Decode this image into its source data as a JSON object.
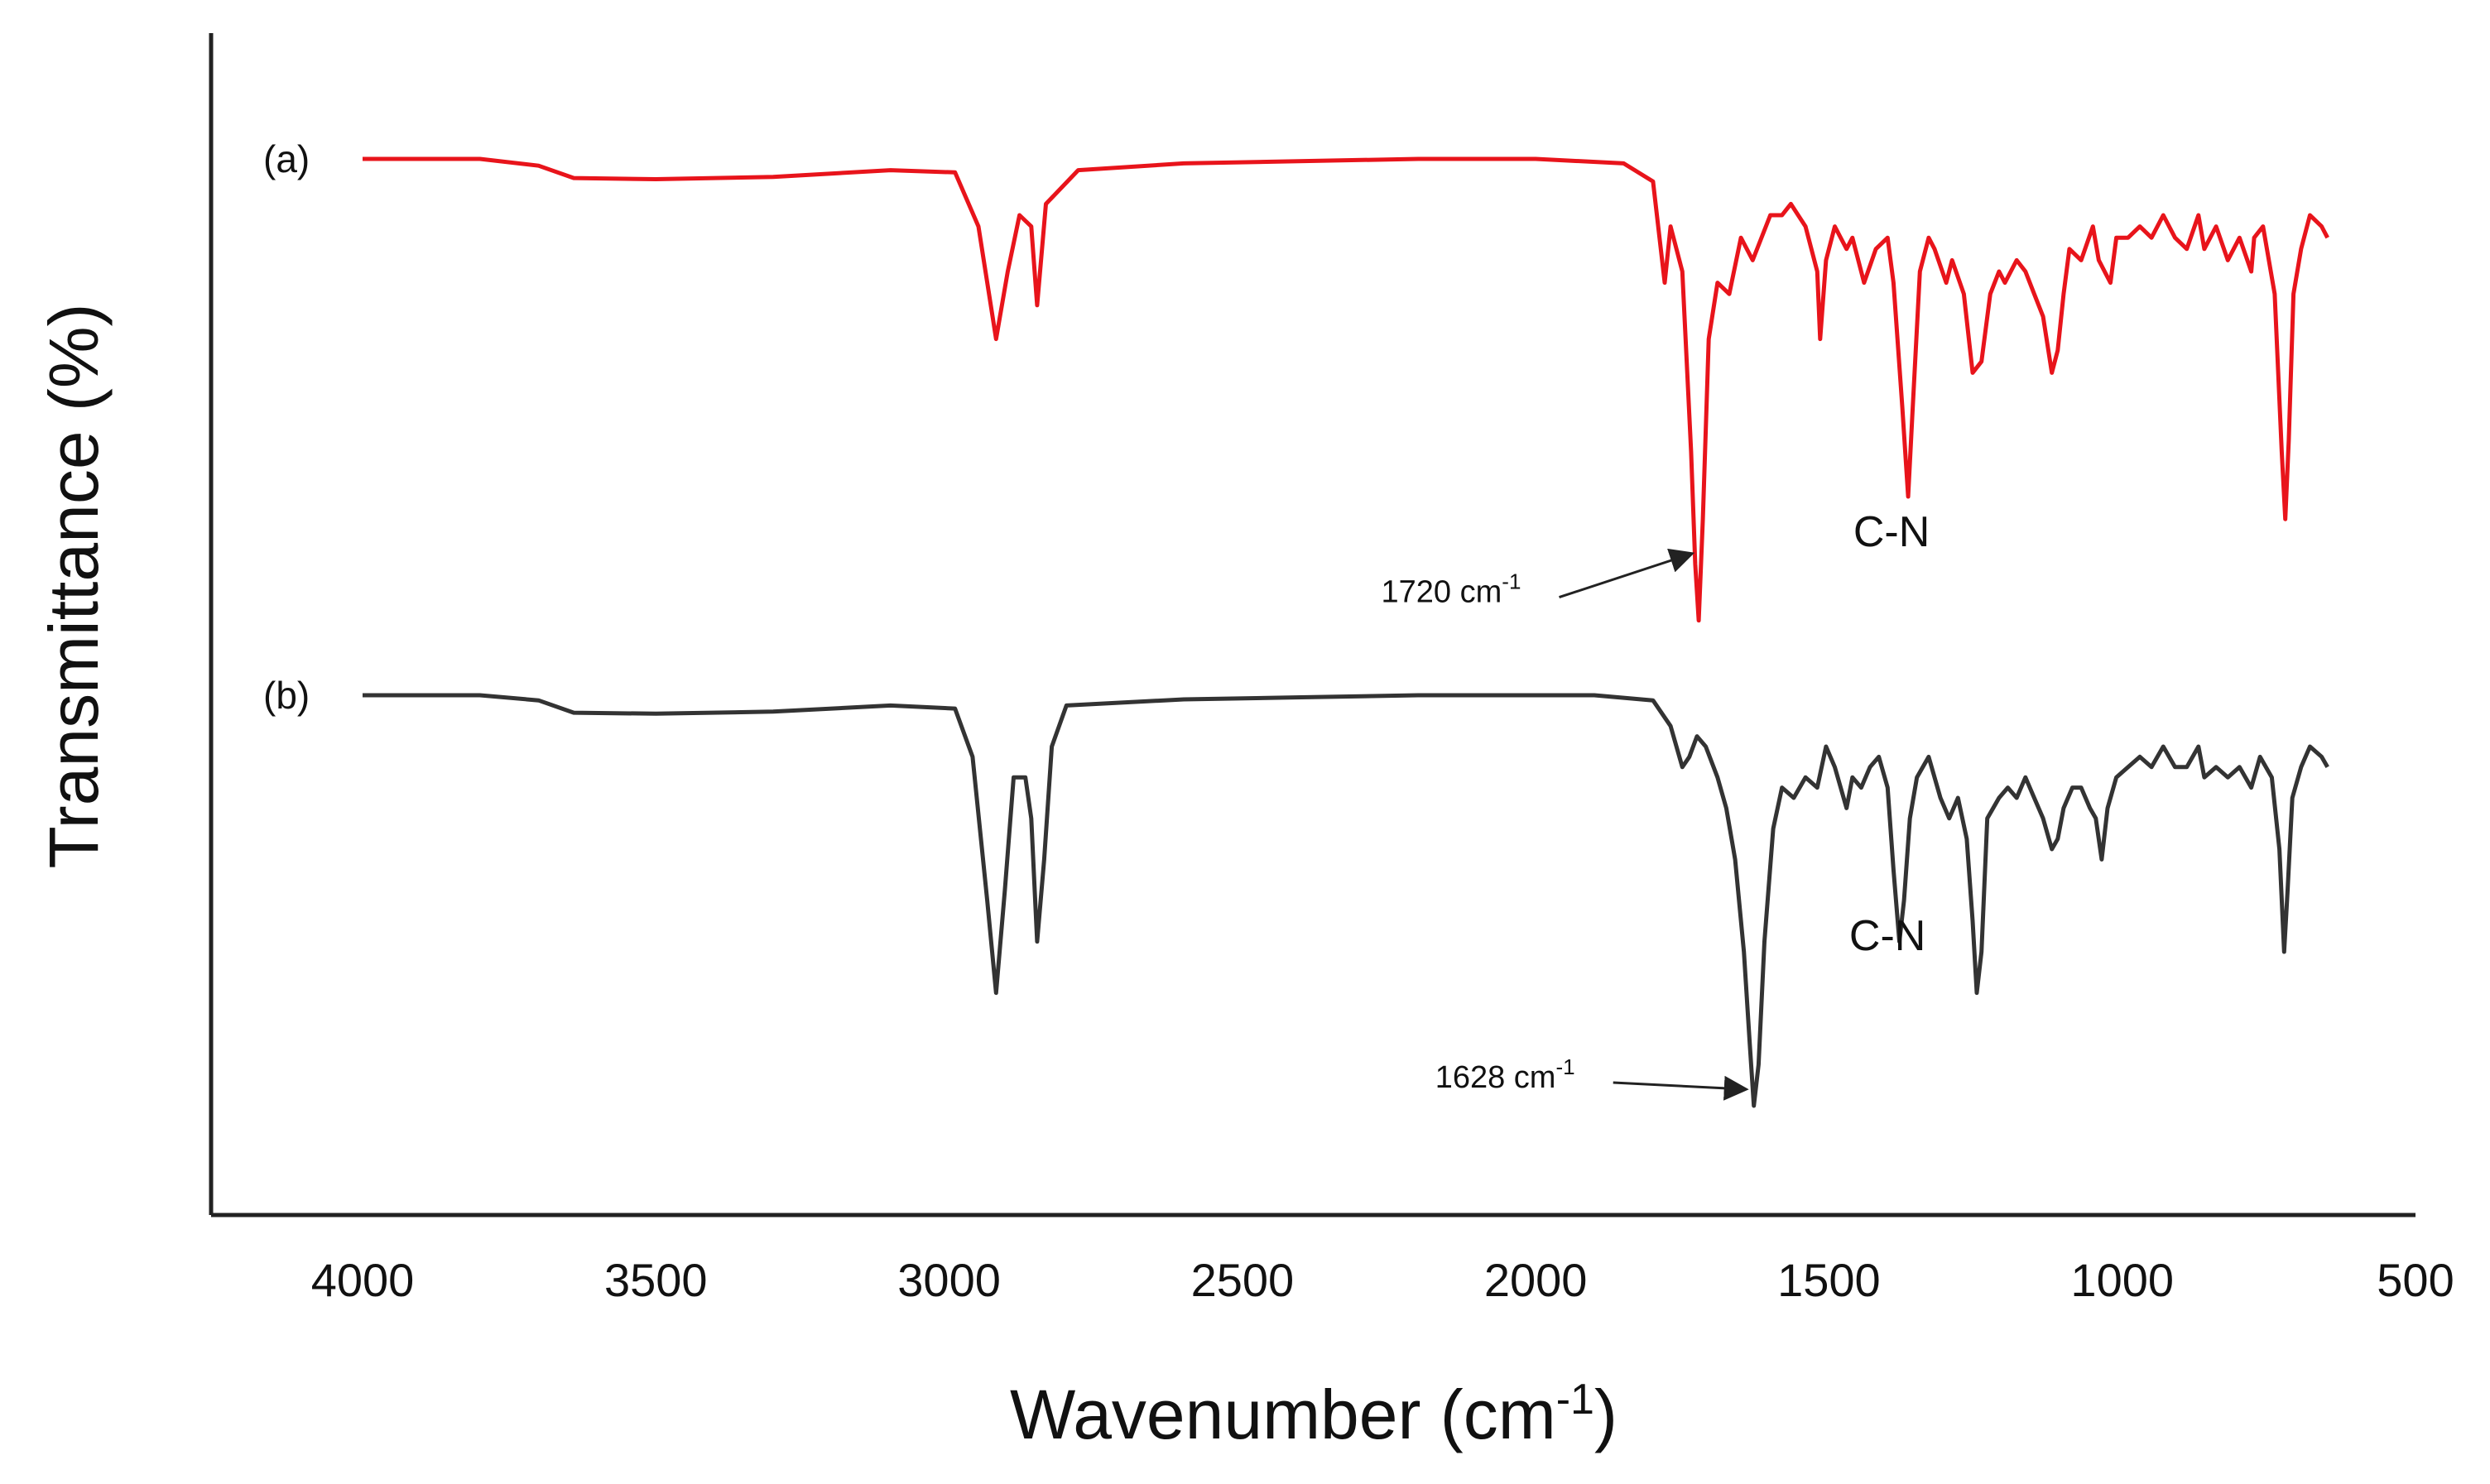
{
  "chart_data": {
    "type": "line",
    "title": "",
    "xlabel": "Wavenumber (cm",
    "xlabel_sup": "-1",
    "xlabel_close": ")",
    "ylabel": "Transmittance (%)",
    "xlim": [
      4250,
      500
    ],
    "x_ticks": [
      4000,
      3500,
      3000,
      2500,
      2000,
      1500,
      1000,
      500
    ],
    "y_ticks": [],
    "grid": false,
    "series": [
      {
        "name": "(a)",
        "color": "#e8141b",
        "offset": 0,
        "points": [
          [
            4000,
            100
          ],
          [
            3800,
            100
          ],
          [
            3700,
            99.4
          ],
          [
            3640,
            98.3
          ],
          [
            3500,
            98.2
          ],
          [
            3300,
            98.4
          ],
          [
            3100,
            99.0
          ],
          [
            2990,
            98.8
          ],
          [
            2950,
            94
          ],
          [
            2920,
            84
          ],
          [
            2900,
            90
          ],
          [
            2880,
            95
          ],
          [
            2860,
            94
          ],
          [
            2850,
            87
          ],
          [
            2835,
            96
          ],
          [
            2780,
            99
          ],
          [
            2600,
            99.6
          ],
          [
            2200,
            100
          ],
          [
            2000,
            100
          ],
          [
            1850,
            99.6
          ],
          [
            1800,
            98
          ],
          [
            1780,
            89
          ],
          [
            1770,
            94
          ],
          [
            1750,
            90
          ],
          [
            1735,
            74
          ],
          [
            1728,
            64
          ],
          [
            1722,
            59
          ],
          [
            1715,
            68
          ],
          [
            1705,
            84
          ],
          [
            1690,
            89
          ],
          [
            1670,
            88
          ],
          [
            1650,
            93
          ],
          [
            1630,
            91
          ],
          [
            1600,
            95
          ],
          [
            1580,
            95
          ],
          [
            1565,
            96
          ],
          [
            1540,
            94
          ],
          [
            1520,
            90
          ],
          [
            1515,
            84
          ],
          [
            1505,
            91
          ],
          [
            1490,
            94
          ],
          [
            1470,
            92
          ],
          [
            1460,
            93
          ],
          [
            1440,
            89
          ],
          [
            1420,
            92
          ],
          [
            1400,
            93
          ],
          [
            1390,
            89
          ],
          [
            1375,
            78
          ],
          [
            1365,
            70
          ],
          [
            1358,
            77
          ],
          [
            1345,
            90
          ],
          [
            1330,
            93
          ],
          [
            1320,
            92
          ],
          [
            1300,
            89
          ],
          [
            1290,
            91
          ],
          [
            1270,
            88
          ],
          [
            1255,
            81
          ],
          [
            1240,
            82
          ],
          [
            1225,
            88
          ],
          [
            1210,
            90
          ],
          [
            1200,
            89
          ],
          [
            1180,
            91
          ],
          [
            1165,
            90
          ],
          [
            1150,
            88
          ],
          [
            1135,
            86
          ],
          [
            1120,
            81
          ],
          [
            1110,
            83
          ],
          [
            1100,
            88
          ],
          [
            1090,
            92
          ],
          [
            1070,
            91
          ],
          [
            1050,
            94
          ],
          [
            1040,
            91
          ],
          [
            1020,
            89
          ],
          [
            1010,
            93
          ],
          [
            990,
            93
          ],
          [
            970,
            94
          ],
          [
            950,
            93
          ],
          [
            930,
            95
          ],
          [
            910,
            93
          ],
          [
            890,
            92
          ],
          [
            870,
            95
          ],
          [
            860,
            92
          ],
          [
            840,
            94
          ],
          [
            820,
            91
          ],
          [
            800,
            93
          ],
          [
            780,
            90
          ],
          [
            775,
            93
          ],
          [
            760,
            94
          ],
          [
            740,
            88
          ],
          [
            728,
            74
          ],
          [
            722,
            68
          ],
          [
            716,
            75
          ],
          [
            708,
            88
          ],
          [
            695,
            92
          ],
          [
            680,
            95
          ],
          [
            660,
            94
          ],
          [
            650,
            93
          ]
        ]
      },
      {
        "name": "(b)",
        "color": "#333333",
        "offset": 0,
        "points": [
          [
            4000,
            100
          ],
          [
            3800,
            100
          ],
          [
            3700,
            99.5
          ],
          [
            3640,
            98.3
          ],
          [
            3500,
            98.2
          ],
          [
            3300,
            98.4
          ],
          [
            3100,
            99.0
          ],
          [
            2990,
            98.7
          ],
          [
            2960,
            94
          ],
          [
            2935,
            80
          ],
          [
            2920,
            71
          ],
          [
            2905,
            81
          ],
          [
            2890,
            92
          ],
          [
            2870,
            92
          ],
          [
            2860,
            88
          ],
          [
            2850,
            76
          ],
          [
            2838,
            84
          ],
          [
            2825,
            95
          ],
          [
            2800,
            99
          ],
          [
            2600,
            99.6
          ],
          [
            2400,
            99.8
          ],
          [
            2200,
            100
          ],
          [
            1900,
            100
          ],
          [
            1800,
            99.5
          ],
          [
            1770,
            97
          ],
          [
            1750,
            93
          ],
          [
            1738,
            94
          ],
          [
            1725,
            96
          ],
          [
            1710,
            95
          ],
          [
            1690,
            92
          ],
          [
            1675,
            89
          ],
          [
            1660,
            84
          ],
          [
            1645,
            75
          ],
          [
            1635,
            66
          ],
          [
            1628,
            60
          ],
          [
            1620,
            64
          ],
          [
            1610,
            76
          ],
          [
            1595,
            87
          ],
          [
            1580,
            91
          ],
          [
            1560,
            90
          ],
          [
            1540,
            92
          ],
          [
            1520,
            91
          ],
          [
            1505,
            95
          ],
          [
            1490,
            93
          ],
          [
            1480,
            91
          ],
          [
            1470,
            89
          ],
          [
            1460,
            92
          ],
          [
            1445,
            91
          ],
          [
            1430,
            93
          ],
          [
            1415,
            94
          ],
          [
            1400,
            91
          ],
          [
            1390,
            83
          ],
          [
            1380,
            76
          ],
          [
            1372,
            80
          ],
          [
            1362,
            88
          ],
          [
            1350,
            92
          ],
          [
            1330,
            94
          ],
          [
            1310,
            90
          ],
          [
            1295,
            88
          ],
          [
            1280,
            90
          ],
          [
            1265,
            86
          ],
          [
            1255,
            78
          ],
          [
            1248,
            71
          ],
          [
            1240,
            75
          ],
          [
            1230,
            88
          ],
          [
            1210,
            90
          ],
          [
            1195,
            91
          ],
          [
            1180,
            90
          ],
          [
            1165,
            92
          ],
          [
            1150,
            90
          ],
          [
            1135,
            88
          ],
          [
            1120,
            85
          ],
          [
            1110,
            86
          ],
          [
            1100,
            89
          ],
          [
            1085,
            91
          ],
          [
            1070,
            91
          ],
          [
            1055,
            89
          ],
          [
            1045,
            88
          ],
          [
            1035,
            84
          ],
          [
            1025,
            89
          ],
          [
            1010,
            92
          ],
          [
            990,
            93
          ],
          [
            970,
            94
          ],
          [
            950,
            93
          ],
          [
            930,
            95
          ],
          [
            910,
            93
          ],
          [
            890,
            93
          ],
          [
            870,
            95
          ],
          [
            860,
            92
          ],
          [
            840,
            93
          ],
          [
            820,
            92
          ],
          [
            800,
            93
          ],
          [
            780,
            91
          ],
          [
            765,
            94
          ],
          [
            745,
            92
          ],
          [
            732,
            85
          ],
          [
            724,
            75
          ],
          [
            718,
            81
          ],
          [
            710,
            90
          ],
          [
            695,
            93
          ],
          [
            680,
            95
          ],
          [
            660,
            94
          ],
          [
            650,
            93
          ]
        ]
      }
    ],
    "annotations": [
      {
        "series": "(a)",
        "text": "1720 cm",
        "sup": "-1",
        "x": 1720
      },
      {
        "series": "(a)",
        "text": "C-N",
        "x": 1365
      },
      {
        "series": "(b)",
        "text": "1628 cm",
        "sup": "-1",
        "x": 1628
      },
      {
        "series": "(b)",
        "text": "C-N",
        "x": 1372
      }
    ]
  }
}
